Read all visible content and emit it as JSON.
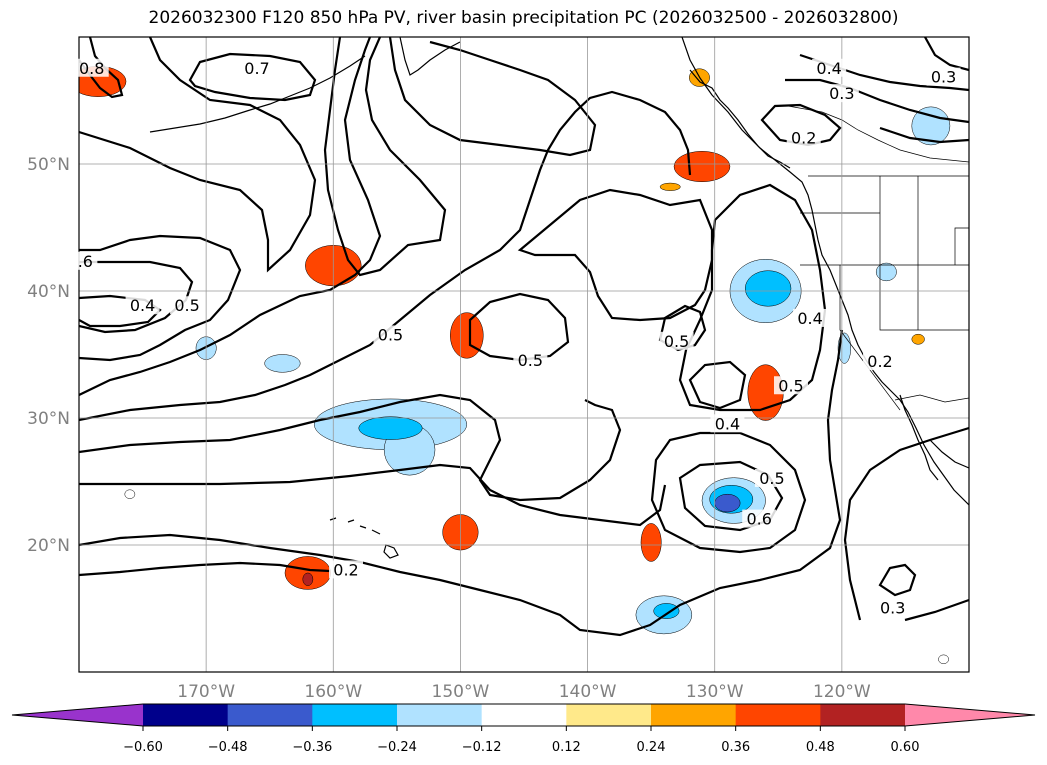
{
  "chart_data": {
    "type": "map-contour",
    "title": "2026032300 F120 850 hPa PV, river basin precipitation PC (2026032500 - 2026032800)",
    "lon_range": [
      -180,
      -110
    ],
    "lat_range": [
      10,
      60
    ],
    "lon_ticks": [
      -170,
      -160,
      -150,
      -140,
      -130,
      -120
    ],
    "lat_ticks": [
      20,
      30,
      40,
      50
    ],
    "lon_tick_labels": [
      "170°W",
      "160°W",
      "150°W",
      "140°W",
      "130°W",
      "120°W"
    ],
    "lat_tick_labels": [
      "20°N",
      "30°N",
      "40°N",
      "50°N"
    ],
    "grid": true,
    "colorbar": {
      "levels": [
        -0.6,
        -0.48,
        -0.36,
        -0.24,
        -0.12,
        0.12,
        0.24,
        0.36,
        0.48,
        0.6
      ],
      "tick_labels": [
        "−0.60",
        "−0.48",
        "−0.36",
        "−0.24",
        "−0.12",
        "0.12",
        "0.24",
        "0.36",
        "0.48",
        "0.60"
      ],
      "colors": [
        "#9933cc",
        "#00008b",
        "#3a5acd",
        "#00bfff",
        "#b0e2ff",
        "#ffffff",
        "#ffe98a",
        "#ffa500",
        "#ff4500",
        "#b22222",
        "#ff88aa"
      ],
      "extend": "both"
    },
    "contour_labels": [
      {
        "text": "0.8",
        "lon": -179,
        "lat": 57.5
      },
      {
        "text": "0.7",
        "lon": -166,
        "lat": 57.5
      },
      {
        "text": "0.4",
        "lon": -121,
        "lat": 57.5
      },
      {
        "text": "0.3",
        "lon": -112,
        "lat": 56.8
      },
      {
        "text": "0.3",
        "lon": -120,
        "lat": 55.5
      },
      {
        "text": "0.2",
        "lon": -123,
        "lat": 52
      },
      {
        "text": ".6",
        "lon": -179.5,
        "lat": 42.3
      },
      {
        "text": "0.4",
        "lon": -175,
        "lat": 38.8
      },
      {
        "text": "0.5",
        "lon": -171.5,
        "lat": 38.8
      },
      {
        "text": "0.5",
        "lon": -155.5,
        "lat": 36.5
      },
      {
        "text": "0.5",
        "lon": -144.5,
        "lat": 34.5
      },
      {
        "text": "0.5",
        "lon": -133,
        "lat": 36
      },
      {
        "text": "0.4",
        "lon": -122.5,
        "lat": 37.8
      },
      {
        "text": "0.2",
        "lon": -117,
        "lat": 34.4
      },
      {
        "text": "0.5",
        "lon": -124,
        "lat": 32.5
      },
      {
        "text": "0.4",
        "lon": -129,
        "lat": 29.5
      },
      {
        "text": "0.5",
        "lon": -125.5,
        "lat": 25.2
      },
      {
        "text": "0.6",
        "lon": -126.5,
        "lat": 22
      },
      {
        "text": "0.2",
        "lon": -159,
        "lat": 18
      },
      {
        "text": "0.3",
        "lon": -116,
        "lat": 15
      }
    ],
    "precip_blobs": [
      {
        "level": 0.36,
        "lon": -178.5,
        "lat": 56.5,
        "rx": 2.2,
        "ry": 1.2
      },
      {
        "level": 0.36,
        "lon": -160,
        "lat": 42,
        "rx": 2.2,
        "ry": 1.6
      },
      {
        "level": 0.36,
        "lon": -149.5,
        "lat": 36.5,
        "rx": 1.3,
        "ry": 1.8
      },
      {
        "level": 0.36,
        "lon": -150,
        "lat": 21,
        "rx": 1.4,
        "ry": 1.4
      },
      {
        "level": 0.36,
        "lon": -162,
        "lat": 17.8,
        "rx": 1.8,
        "ry": 1.3
      },
      {
        "level": 0.48,
        "lon": -162,
        "lat": 17.3,
        "rx": 0.4,
        "ry": 0.5
      },
      {
        "level": 0.36,
        "lon": -135,
        "lat": 20.2,
        "rx": 0.8,
        "ry": 1.5
      },
      {
        "level": 0.36,
        "lon": -126,
        "lat": 32,
        "rx": 1.4,
        "ry": 2.2
      },
      {
        "level": 0.36,
        "lon": -131,
        "lat": 49.8,
        "rx": 2.2,
        "ry": 1.2
      },
      {
        "level": 0.24,
        "lon": -133.5,
        "lat": 48.2,
        "rx": 0.8,
        "ry": 0.3
      },
      {
        "level": 0.24,
        "lon": -131.2,
        "lat": 56.8,
        "rx": 0.8,
        "ry": 0.7
      },
      {
        "level": 0.24,
        "lon": -114,
        "lat": 36.2,
        "rx": 0.5,
        "ry": 0.4
      },
      {
        "level": -0.24,
        "lon": -155.5,
        "lat": 29.5,
        "rx": 6,
        "ry": 2
      },
      {
        "level": -0.24,
        "lon": -154,
        "lat": 27.5,
        "rx": 2,
        "ry": 2
      },
      {
        "level": -0.36,
        "lon": -155.5,
        "lat": 29.2,
        "rx": 2.5,
        "ry": 0.9
      },
      {
        "level": -0.24,
        "lon": -128.5,
        "lat": 23.5,
        "rx": 2.5,
        "ry": 1.8
      },
      {
        "level": -0.36,
        "lon": -128.7,
        "lat": 23.6,
        "rx": 1.7,
        "ry": 1.1
      },
      {
        "level": -0.48,
        "lon": -129,
        "lat": 23.3,
        "rx": 1,
        "ry": 0.7
      },
      {
        "level": -0.24,
        "lon": -126,
        "lat": 40,
        "rx": 2.8,
        "ry": 2.5
      },
      {
        "level": -0.36,
        "lon": -125.8,
        "lat": 40.2,
        "rx": 1.8,
        "ry": 1.4
      },
      {
        "level": -0.24,
        "lon": -134,
        "lat": 14.5,
        "rx": 2.2,
        "ry": 1.5
      },
      {
        "level": -0.36,
        "lon": -133.8,
        "lat": 14.8,
        "rx": 1,
        "ry": 0.6
      },
      {
        "level": -0.24,
        "lon": -164,
        "lat": 34.3,
        "rx": 1.4,
        "ry": 0.7
      },
      {
        "level": -0.24,
        "lon": -170,
        "lat": 35.5,
        "rx": 0.8,
        "ry": 0.9
      },
      {
        "level": -0.24,
        "lon": -113,
        "lat": 53,
        "rx": 1.5,
        "ry": 1.5
      },
      {
        "level": -0.24,
        "lon": -116.5,
        "lat": 41.5,
        "rx": 0.8,
        "ry": 0.7
      },
      {
        "level": -0.24,
        "lon": -119.8,
        "lat": 35.5,
        "rx": 0.5,
        "ry": 1.2
      },
      {
        "level": -0.12,
        "lon": -176,
        "lat": 24,
        "rx": 0.4,
        "ry": 0.35
      },
      {
        "level": -0.12,
        "lon": -112,
        "lat": 11,
        "rx": 0.4,
        "ry": 0.35
      }
    ]
  }
}
